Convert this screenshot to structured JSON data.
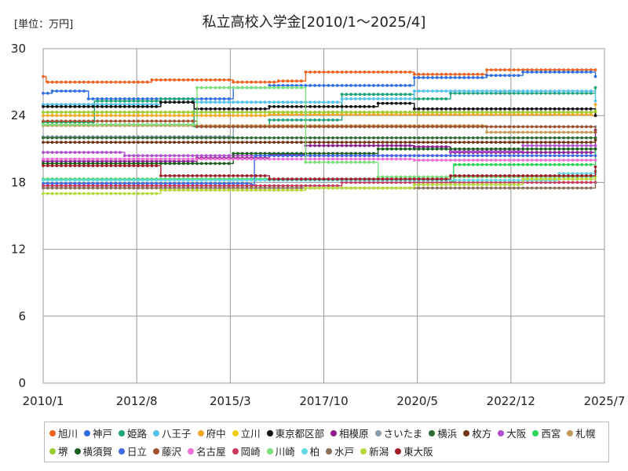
{
  "chart_data": {
    "type": "line",
    "title": "私立高校入学金[2010/1～2025/4]",
    "unit_label": "[単位：万円]",
    "xlabel": "",
    "ylabel": "",
    "x_tick_labels": [
      "2010/1",
      "2012/8",
      "2015/3",
      "2017/10",
      "2020/5",
      "2022/12",
      "2025/7"
    ],
    "x_range": [
      "2010/1",
      "2025/7"
    ],
    "y_ticks": [
      0,
      6,
      12,
      18,
      24,
      30
    ],
    "ylim": [
      0,
      30
    ],
    "grid": true,
    "legend_position": "bottom",
    "series": [
      {
        "name": "旭川",
        "color": "#F0601E",
        "points": [
          [
            "2010/1",
            27.5
          ],
          [
            "2010/2",
            27.0
          ],
          [
            "2013/1",
            27.2
          ],
          [
            "2015/4",
            27.0
          ],
          [
            "2016/7",
            27.1
          ],
          [
            "2017/4",
            27.9
          ],
          [
            "2020/4",
            27.7
          ],
          [
            "2022/4",
            28.1
          ],
          [
            "2025/4",
            28.1
          ]
        ]
      },
      {
        "name": "神戸",
        "color": "#2F6FE0",
        "points": [
          [
            "2010/1",
            26.0
          ],
          [
            "2010/4",
            26.2
          ],
          [
            "2011/4",
            25.5
          ],
          [
            "2015/4",
            26.5
          ],
          [
            "2016/4",
            26.7
          ],
          [
            "2020/4",
            27.4
          ],
          [
            "2022/4",
            27.6
          ],
          [
            "2023/4",
            27.9
          ],
          [
            "2025/3",
            27.9
          ],
          [
            "2025/4",
            27.5
          ]
        ]
      },
      {
        "name": "姫路",
        "color": "#1FA37A",
        "points": [
          [
            "2010/1",
            23.4
          ],
          [
            "2011/6",
            25.3
          ],
          [
            "2013/4",
            25.5
          ],
          [
            "2014/3",
            23.0
          ],
          [
            "2016/4",
            23.6
          ],
          [
            "2018/4",
            25.9
          ],
          [
            "2020/4",
            25.5
          ],
          [
            "2021/4",
            26.0
          ],
          [
            "2025/3",
            26.0
          ],
          [
            "2025/4",
            26.5
          ]
        ]
      },
      {
        "name": "八王子",
        "color": "#55C2EE",
        "points": [
          [
            "2010/1",
            25.0
          ],
          [
            "2013/4",
            25.2
          ],
          [
            "2015/4",
            25.2
          ],
          [
            "2018/4",
            25.5
          ],
          [
            "2020/4",
            26.2
          ],
          [
            "2025/3",
            26.2
          ],
          [
            "2025/4",
            25.3
          ]
        ]
      },
      {
        "name": "府中",
        "color": "#F5A623",
        "points": [
          [
            "2010/1",
            24.0
          ],
          [
            "2016/4",
            24.1
          ],
          [
            "2025/3",
            24.0
          ],
          [
            "2025/4",
            25.0
          ]
        ]
      },
      {
        "name": "立川",
        "color": "#F2D21E",
        "points": [
          [
            "2010/1",
            24.3
          ],
          [
            "2025/4",
            24.3
          ]
        ]
      },
      {
        "name": "東京都区部",
        "color": "#111111",
        "points": [
          [
            "2010/1",
            24.8
          ],
          [
            "2013/4",
            25.2
          ],
          [
            "2014/3",
            24.6
          ],
          [
            "2016/4",
            24.8
          ],
          [
            "2019/4",
            25.1
          ],
          [
            "2020/4",
            24.6
          ],
          [
            "2025/3",
            24.6
          ],
          [
            "2025/4",
            24.0
          ]
        ]
      },
      {
        "name": "相模原",
        "color": "#8B1E8F",
        "points": [
          [
            "2010/1",
            19.9
          ],
          [
            "2014/4",
            20.2
          ],
          [
            "2016/4",
            20.5
          ],
          [
            "2017/4",
            21.3
          ],
          [
            "2020/4",
            21.2
          ],
          [
            "2021/4",
            20.7
          ],
          [
            "2025/3",
            20.7
          ],
          [
            "2025/4",
            22.7
          ]
        ]
      },
      {
        "name": "さいたま",
        "color": "#8A9BAA",
        "points": [
          [
            "2010/1",
            22.1
          ],
          [
            "2015/4",
            23.0
          ],
          [
            "2025/4",
            23.0
          ]
        ]
      },
      {
        "name": "横浜",
        "color": "#2E6B35",
        "points": [
          [
            "2010/1",
            22.0
          ],
          [
            "2025/4",
            22.0
          ]
        ]
      },
      {
        "name": "枚方",
        "color": "#6E3517",
        "points": [
          [
            "2010/1",
            21.6
          ],
          [
            "2025/4",
            21.8
          ]
        ]
      },
      {
        "name": "大阪",
        "color": "#B04FD0",
        "points": [
          [
            "2010/1",
            20.7
          ],
          [
            "2012/4",
            20.4
          ],
          [
            "2021/4",
            20.8
          ],
          [
            "2023/4",
            21.3
          ],
          [
            "2025/4",
            21.3
          ]
        ]
      },
      {
        "name": "西宮",
        "color": "#2FD65A",
        "points": [
          [
            "2010/1",
            18.3
          ],
          [
            "2021/4",
            18.1
          ],
          [
            "2021/5",
            19.6
          ],
          [
            "2025/3",
            19.6
          ],
          [
            "2025/4",
            21.0
          ]
        ]
      },
      {
        "name": "札幌",
        "color": "#C49A5B",
        "points": [
          [
            "2010/1",
            23.1
          ],
          [
            "2016/4",
            23.1
          ],
          [
            "2022/4",
            22.5
          ],
          [
            "2025/4",
            22.5
          ]
        ]
      },
      {
        "name": "堺",
        "color": "#9ACD32",
        "points": [
          [
            "2010/1",
            24.3
          ],
          [
            "2025/4",
            24.4
          ]
        ]
      },
      {
        "name": "横須賀",
        "color": "#1B5E20",
        "points": [
          [
            "2010/1",
            19.7
          ],
          [
            "2015/4",
            20.6
          ],
          [
            "2019/4",
            21.0
          ],
          [
            "2025/4",
            21.0
          ]
        ]
      },
      {
        "name": "日立",
        "color": "#4169E1",
        "points": [
          [
            "2010/1",
            17.9
          ],
          [
            "2015/10",
            17.8
          ],
          [
            "2015/11",
            20.4
          ],
          [
            "2025/4",
            20.4
          ]
        ]
      },
      {
        "name": "藤沢",
        "color": "#A0522D",
        "points": [
          [
            "2010/1",
            23.5
          ],
          [
            "2014/4",
            23.0
          ],
          [
            "2025/4",
            22.5
          ]
        ]
      },
      {
        "name": "名古屋",
        "color": "#F070D8",
        "points": [
          [
            "2010/1",
            20.1
          ],
          [
            "2020/4",
            20.0
          ],
          [
            "2025/4",
            20.0
          ]
        ]
      },
      {
        "name": "岡崎",
        "color": "#C8375E",
        "points": [
          [
            "2010/1",
            17.7
          ],
          [
            "2018/4",
            18.0
          ],
          [
            "2025/4",
            18.0
          ]
        ]
      },
      {
        "name": "川崎",
        "color": "#7CE07C",
        "points": [
          [
            "2010/1",
            23.2
          ],
          [
            "2014/4",
            26.5
          ],
          [
            "2017/4",
            19.8
          ],
          [
            "2019/4",
            18.5
          ],
          [
            "2025/4",
            18.5
          ]
        ]
      },
      {
        "name": "柏",
        "color": "#66D8E0",
        "points": [
          [
            "2010/1",
            18.2
          ],
          [
            "2024/4",
            18.8
          ],
          [
            "2025/4",
            18.8
          ]
        ]
      },
      {
        "name": "水戸",
        "color": "#8B6E5A",
        "points": [
          [
            "2010/1",
            17.5
          ],
          [
            "2025/4",
            19.0
          ]
        ]
      },
      {
        "name": "新潟",
        "color": "#B5DA3A",
        "points": [
          [
            "2010/1",
            17.0
          ],
          [
            "2013/4",
            17.3
          ],
          [
            "2017/4",
            17.5
          ],
          [
            "2020/4",
            17.8
          ],
          [
            "2023/4",
            18.3
          ],
          [
            "2025/4",
            18.5
          ]
        ]
      },
      {
        "name": "東大阪",
        "color": "#A01E28",
        "points": [
          [
            "2010/1",
            19.5
          ],
          [
            "2013/4",
            18.6
          ],
          [
            "2016/4",
            18.3
          ],
          [
            "2021/4",
            18.6
          ],
          [
            "2025/4",
            19.4
          ]
        ]
      }
    ]
  }
}
